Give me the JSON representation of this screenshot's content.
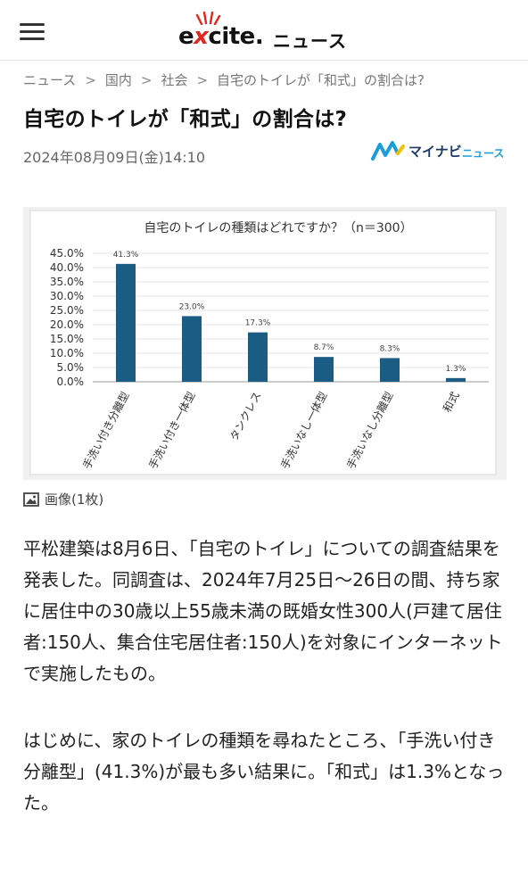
{
  "header": {
    "menu_icon": "hamburger-menu-icon",
    "logo_text_pre": "e",
    "logo_text_x": "x",
    "logo_text_post": "cite",
    "logo_dot": ".",
    "section": "ニュース"
  },
  "breadcrumb": {
    "items": [
      "ニュース",
      "国内",
      "社会",
      "自宅のトイレが「和式」の割合は?"
    ],
    "separator": ">"
  },
  "article": {
    "title": "自宅のトイレが「和式」の割合は?",
    "date": "2024年08月09日(金)14:10",
    "source_name": "マイナビ",
    "source_suffix": "ニュース",
    "image_count": "画像(1枚)",
    "paragraphs": [
      "平松建築は8月6日、「自宅のトイレ」についての調査結果を発表した。同調査は、2024年7月25日～26日の間、持ち家に居住中の30歳以上55歳未満の既婚女性300人(戸建て居住者:150人、集合住宅居住者:150人)を対象にインターネットで実施したもの。",
      "はじめに、家のトイレの種類を尋ねたところ、「手洗い付き分離型」(41.3%)が最も多い結果に。「和式」は1.3%となった。"
    ]
  },
  "colors": {
    "bar": "#1b5c85",
    "accent_red": "#e4261f",
    "mynavi_blue": "#1a9ed9"
  },
  "chart_data": {
    "type": "bar",
    "title": "自宅のトイレの種類はどれですか？（n＝300）",
    "categories": [
      "手洗い付き分離型",
      "手洗い付き一体型",
      "タンクレス",
      "手洗いなし一体型",
      "手洗いなし分離型",
      "和式"
    ],
    "values": [
      41.3,
      23.0,
      17.3,
      8.7,
      8.3,
      1.3
    ],
    "value_labels": [
      "41.3%",
      "23.0%",
      "17.3%",
      "8.7%",
      "8.3%",
      "1.3%"
    ],
    "yticks": [
      "0.0%",
      "5.0%",
      "10.0%",
      "15.0%",
      "20.0%",
      "25.0%",
      "30.0%",
      "35.0%",
      "40.0%",
      "45.0%"
    ],
    "ylim": [
      0,
      45
    ],
    "xlabel": "",
    "ylabel": ""
  }
}
